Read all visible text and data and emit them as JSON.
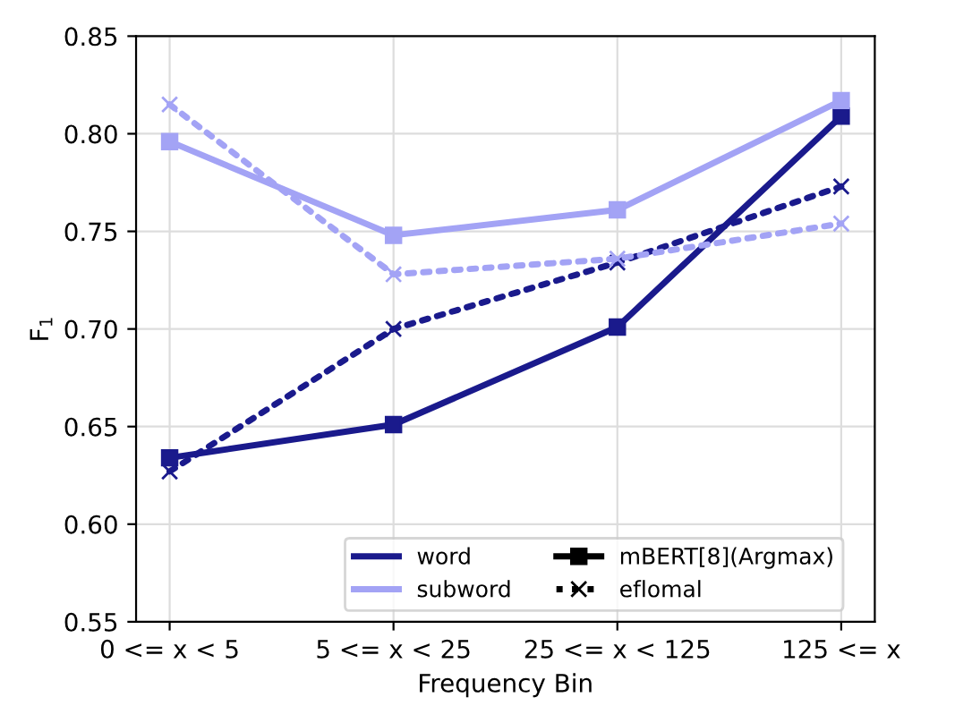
{
  "chart_data": {
    "type": "line",
    "xlabel": "Frequency Bin",
    "ylabel": "F$_{1}$",
    "categories": [
      "0 <= x < 5",
      "5 <= x < 25",
      "25 <= x < 125",
      "125 <= x"
    ],
    "ylim": [
      0.55,
      0.85
    ],
    "yticks": [
      {
        "value": 0.55,
        "label": "0.55"
      },
      {
        "value": 0.6,
        "label": "0.60"
      },
      {
        "value": 0.65,
        "label": "0.65"
      },
      {
        "value": 0.7,
        "label": "0.70"
      },
      {
        "value": 0.75,
        "label": "0.75"
      },
      {
        "value": 0.8,
        "label": "0.80"
      },
      {
        "value": 0.85,
        "label": "0.85"
      }
    ],
    "grid": true,
    "legend": "bottom",
    "series": [
      {
        "name": "word",
        "color": "#1a1a8c",
        "line_style": "solid",
        "marker": "square",
        "values": [
          0.634,
          0.651,
          0.701,
          0.809
        ]
      },
      {
        "name": "subword",
        "color": "#a3a3f5",
        "line_style": "solid",
        "marker": "square",
        "values": [
          0.796,
          0.748,
          0.761,
          0.817
        ]
      },
      {
        "color": "#1a1a8c",
        "line_style": "dotted",
        "marker": "cross",
        "values": [
          0.627,
          0.7,
          0.734,
          0.773
        ]
      },
      {
        "color": "#a3a3f5",
        "line_style": "dotted",
        "marker": "cross",
        "values": [
          0.815,
          0.728,
          0.736,
          0.754
        ]
      }
    ],
    "annotations": [
      "mBERT[8](Argmax)",
      "eflomal"
    ]
  }
}
